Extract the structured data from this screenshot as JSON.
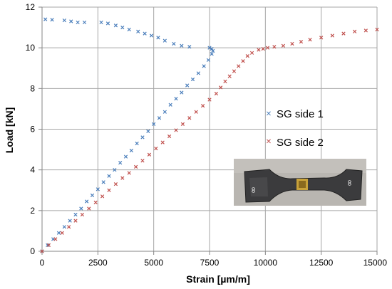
{
  "chart_data": {
    "type": "scatter",
    "title": "",
    "xlabel": "Strain [µm/m]",
    "ylabel": "Load [kN]",
    "xlim": [
      0,
      15000
    ],
    "ylim": [
      0,
      12
    ],
    "x_ticks": [
      0,
      2500,
      5000,
      7500,
      10000,
      12500,
      15000
    ],
    "y_ticks": [
      0,
      2,
      4,
      6,
      8,
      10,
      12
    ],
    "grid": true,
    "legend_position": "right",
    "inset_photo": "specimen-photo",
    "series": [
      {
        "name": "SG side 1",
        "color": "#4a7ebb",
        "marker": "x",
        "points": [
          [
            0,
            0
          ],
          [
            250,
            0.3
          ],
          [
            500,
            0.6
          ],
          [
            750,
            0.9
          ],
          [
            1000,
            1.2
          ],
          [
            1250,
            1.5
          ],
          [
            1500,
            1.8
          ],
          [
            1750,
            2.1
          ],
          [
            2000,
            2.45
          ],
          [
            2250,
            2.75
          ],
          [
            2500,
            3.05
          ],
          [
            2750,
            3.4
          ],
          [
            3000,
            3.7
          ],
          [
            3250,
            4.0
          ],
          [
            3500,
            4.35
          ],
          [
            3750,
            4.65
          ],
          [
            4000,
            4.95
          ],
          [
            4250,
            5.3
          ],
          [
            4500,
            5.6
          ],
          [
            4750,
            5.9
          ],
          [
            5000,
            6.25
          ],
          [
            5250,
            6.55
          ],
          [
            5500,
            6.85
          ],
          [
            5750,
            7.2
          ],
          [
            6000,
            7.5
          ],
          [
            6250,
            7.8
          ],
          [
            6500,
            8.15
          ],
          [
            6750,
            8.45
          ],
          [
            7000,
            8.75
          ],
          [
            7250,
            9.1
          ],
          [
            7450,
            9.4
          ],
          [
            7600,
            9.7
          ],
          [
            7650,
            9.85
          ],
          [
            7600,
            9.95
          ],
          [
            7500,
            10.0
          ],
          [
            6600,
            10.05
          ],
          [
            6250,
            10.1
          ],
          [
            5900,
            10.2
          ],
          [
            5500,
            10.35
          ],
          [
            5200,
            10.5
          ],
          [
            4900,
            10.6
          ],
          [
            4600,
            10.7
          ],
          [
            4300,
            10.8
          ],
          [
            3900,
            10.9
          ],
          [
            3600,
            11.0
          ],
          [
            3300,
            11.1
          ],
          [
            2950,
            11.2
          ],
          [
            2650,
            11.25
          ],
          [
            1900,
            11.25
          ],
          [
            1600,
            11.25
          ],
          [
            1300,
            11.3
          ],
          [
            1000,
            11.35
          ],
          [
            450,
            11.38
          ],
          [
            150,
            11.4
          ]
        ]
      },
      {
        "name": "SG side 2",
        "color": "#c0504d",
        "marker": "x",
        "points": [
          [
            0,
            0
          ],
          [
            300,
            0.3
          ],
          [
            600,
            0.6
          ],
          [
            900,
            0.9
          ],
          [
            1200,
            1.2
          ],
          [
            1500,
            1.5
          ],
          [
            1800,
            1.8
          ],
          [
            2100,
            2.1
          ],
          [
            2400,
            2.4
          ],
          [
            2700,
            2.7
          ],
          [
            3000,
            3.0
          ],
          [
            3300,
            3.3
          ],
          [
            3600,
            3.6
          ],
          [
            3900,
            3.85
          ],
          [
            4200,
            4.15
          ],
          [
            4500,
            4.45
          ],
          [
            4800,
            4.75
          ],
          [
            5100,
            5.05
          ],
          [
            5400,
            5.35
          ],
          [
            5700,
            5.65
          ],
          [
            6000,
            5.95
          ],
          [
            6300,
            6.25
          ],
          [
            6600,
            6.55
          ],
          [
            6900,
            6.85
          ],
          [
            7200,
            7.15
          ],
          [
            7500,
            7.45
          ],
          [
            7800,
            7.75
          ],
          [
            8000,
            8.05
          ],
          [
            8200,
            8.35
          ],
          [
            8400,
            8.6
          ],
          [
            8600,
            8.85
          ],
          [
            8800,
            9.1
          ],
          [
            9000,
            9.35
          ],
          [
            9200,
            9.6
          ],
          [
            9400,
            9.75
          ],
          [
            9700,
            9.9
          ],
          [
            9900,
            9.95
          ],
          [
            10100,
            10.0
          ],
          [
            10400,
            10.05
          ],
          [
            10800,
            10.1
          ],
          [
            11200,
            10.2
          ],
          [
            11600,
            10.3
          ],
          [
            12000,
            10.4
          ],
          [
            12500,
            10.5
          ],
          [
            13000,
            10.6
          ],
          [
            13500,
            10.7
          ],
          [
            14000,
            10.8
          ],
          [
            14500,
            10.85
          ],
          [
            15000,
            10.9
          ]
        ]
      }
    ]
  }
}
